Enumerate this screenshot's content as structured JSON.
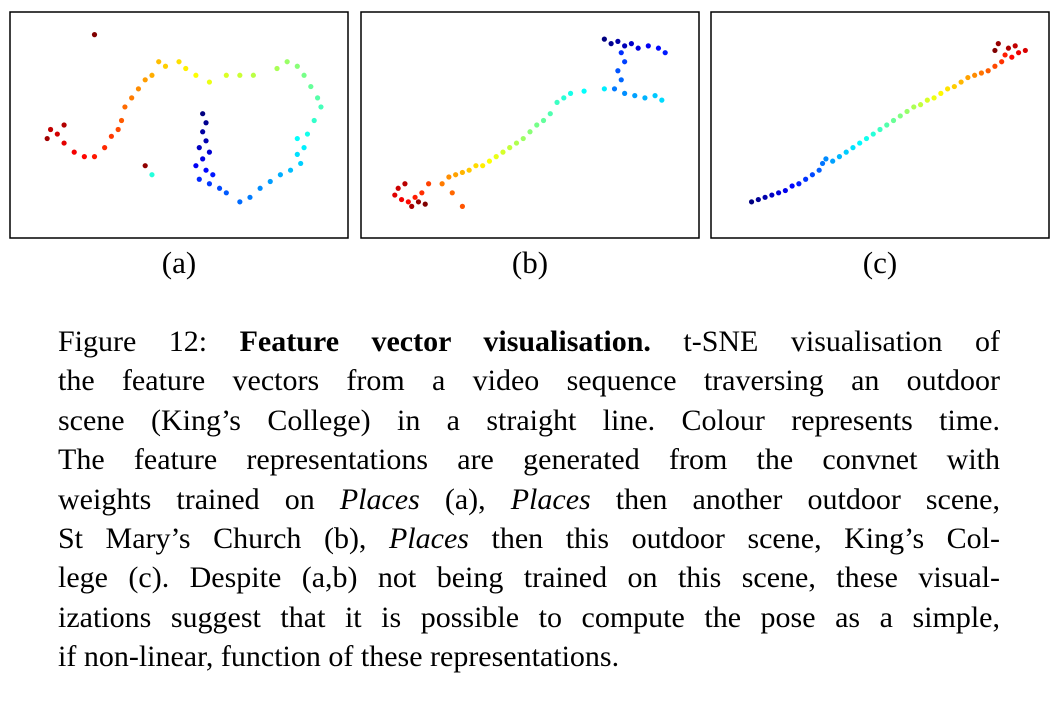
{
  "chart_data": [
    {
      "type": "scatter",
      "label": "(a)",
      "colormap": "jet",
      "xlim": [
        0,
        100
      ],
      "ylim": [
        0,
        100
      ],
      "x": [
        57,
        58,
        57,
        58,
        56,
        59,
        57,
        55,
        58,
        60,
        56,
        59,
        62,
        64,
        68,
        71,
        74,
        77,
        80,
        83,
        86,
        85,
        87,
        85,
        88,
        42,
        90,
        92,
        91,
        89,
        87,
        85,
        82,
        79,
        72,
        68,
        64,
        59,
        55,
        52,
        50,
        46,
        44,
        42,
        40,
        38,
        36,
        34,
        33,
        32,
        30,
        28,
        25,
        22,
        19,
        16,
        14,
        12,
        16,
        11,
        40,
        25
      ],
      "y": [
        55,
        51,
        47,
        43,
        40,
        38,
        35,
        32,
        30,
        28,
        26,
        24,
        22,
        20,
        16,
        18,
        22,
        25,
        28,
        30,
        33,
        37,
        40,
        44,
        46,
        28,
        52,
        58,
        62,
        67,
        72,
        76,
        78,
        75,
        72,
        72,
        72,
        69,
        72,
        75,
        78,
        76,
        78,
        72,
        70,
        66,
        62,
        58,
        52,
        48,
        45,
        40,
        36,
        36,
        38,
        42,
        46,
        48,
        50,
        44,
        32,
        90
      ]
    },
    {
      "type": "scatter",
      "label": "(b)",
      "colormap": "jet",
      "xlim": [
        0,
        100
      ],
      "ylim": [
        0,
        100
      ],
      "x": [
        72,
        74,
        76,
        78,
        80,
        82,
        85,
        88,
        90,
        77,
        78,
        76,
        77,
        75,
        78,
        81,
        84,
        87,
        89,
        72,
        66,
        62,
        60,
        58,
        56,
        54,
        52,
        50,
        48,
        46,
        44,
        42,
        40,
        38,
        36,
        34,
        32,
        30,
        28,
        26,
        24,
        27,
        30,
        20,
        18,
        16,
        14,
        12,
        10,
        11,
        13,
        15,
        17,
        19
      ],
      "y": [
        88,
        86,
        87,
        85,
        86,
        84,
        85,
        84,
        82,
        82,
        78,
        74,
        70,
        66,
        64,
        63,
        62,
        63,
        61,
        66,
        65,
        64,
        62,
        60,
        55,
        52,
        50,
        47,
        44,
        42,
        40,
        38,
        36,
        34,
        32,
        32,
        30,
        29,
        28,
        27,
        24,
        20,
        14,
        24,
        20,
        18,
        16,
        17,
        19,
        22,
        24,
        14,
        16,
        15
      ]
    },
    {
      "type": "scatter",
      "label": "(c)",
      "colormap": "jet",
      "xlim": [
        0,
        100
      ],
      "ylim": [
        0,
        100
      ],
      "x": [
        12,
        14,
        16,
        18,
        20,
        22,
        24,
        26,
        28,
        30,
        32,
        33,
        34,
        36,
        38,
        40,
        42,
        44,
        46,
        48,
        50,
        52,
        54,
        56,
        58,
        60,
        62,
        64,
        66,
        68,
        70,
        72,
        74,
        76,
        78,
        80,
        82,
        84,
        86,
        87,
        89,
        91,
        93,
        90,
        88,
        85,
        84
      ],
      "y": [
        16,
        17,
        18,
        19,
        20,
        21,
        23,
        24,
        26,
        28,
        30,
        33,
        35,
        34,
        36,
        38,
        40,
        42,
        44,
        46,
        48,
        50,
        52,
        54,
        56,
        58,
        59,
        61,
        62,
        64,
        66,
        67,
        69,
        71,
        72,
        73,
        74,
        76,
        78,
        81,
        80,
        82,
        83,
        85,
        84,
        86,
        83
      ]
    }
  ],
  "caption": {
    "lines": [
      [
        {
          "text": "Figure 12: ",
          "style": "normal"
        },
        {
          "text": "Feature vector visualisation.",
          "style": "bold"
        },
        {
          "text": " t-SNE visualisation of",
          "style": "normal"
        }
      ],
      [
        {
          "text": "the feature vectors from a video sequence traversing an outdoor",
          "style": "normal"
        }
      ],
      [
        {
          "text": "scene (King’s College) in a straight line.  Colour represents time.",
          "style": "normal"
        }
      ],
      [
        {
          "text": "The feature representations are generated from the convnet with",
          "style": "normal"
        }
      ],
      [
        {
          "text": "weights trained on ",
          "style": "normal"
        },
        {
          "text": "Places",
          "style": "italic"
        },
        {
          "text": " (a), ",
          "style": "normal"
        },
        {
          "text": "Places",
          "style": "italic"
        },
        {
          "text": " then another outdoor scene,",
          "style": "normal"
        }
      ],
      [
        {
          "text": "St Mary’s Church (b), ",
          "style": "normal"
        },
        {
          "text": "Places",
          "style": "italic"
        },
        {
          "text": " then this outdoor scene, King’s Col-",
          "style": "normal"
        }
      ],
      [
        {
          "text": "lege (c).  Despite (a,b) not being trained on this scene, these visual-",
          "style": "normal"
        }
      ],
      [
        {
          "text": "izations suggest that it is possible to compute the pose as a simple,",
          "style": "normal"
        }
      ],
      [
        {
          "text": "if non-linear, function of these representations.",
          "style": "normal"
        }
      ]
    ]
  }
}
